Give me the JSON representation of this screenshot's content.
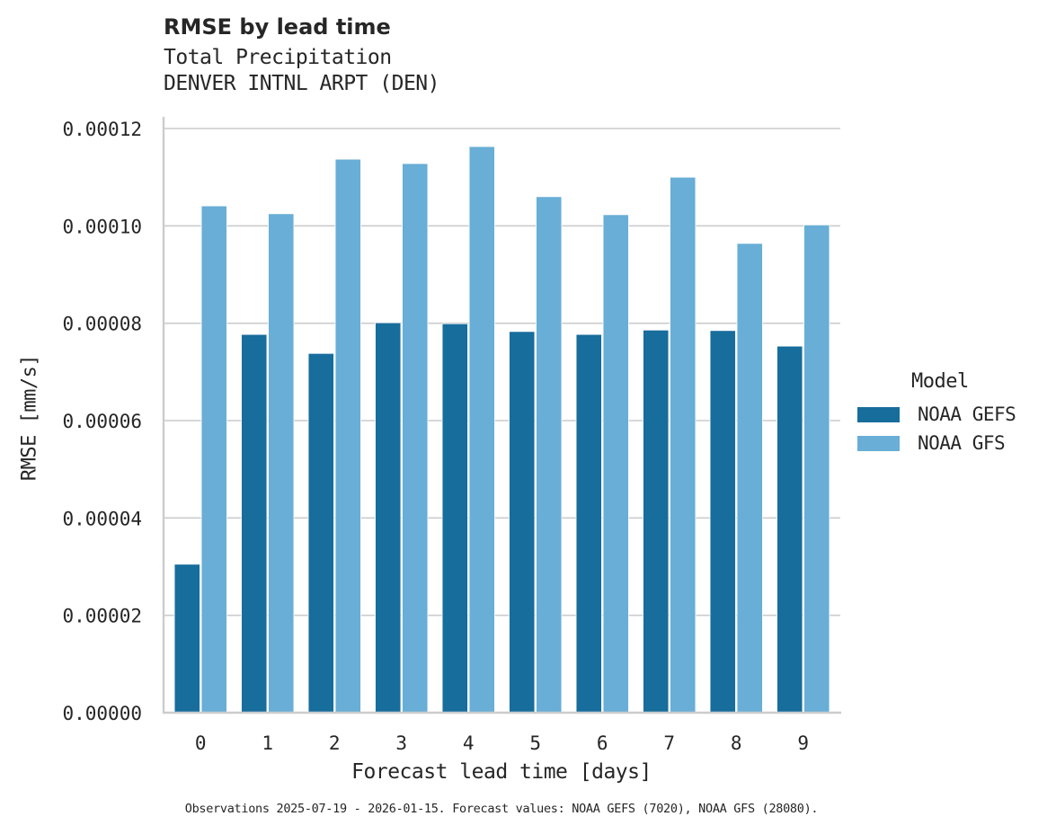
{
  "chart_data": {
    "type": "bar",
    "title": "RMSE by lead time",
    "subtitle": [
      "Total Precipitation",
      "DENVER INTNL ARPT (DEN)"
    ],
    "xlabel": "Forecast lead time [days]",
    "ylabel": "RMSE [mm/s]",
    "categories": [
      "0",
      "1",
      "2",
      "3",
      "4",
      "5",
      "6",
      "7",
      "8",
      "9"
    ],
    "series": [
      {
        "name": "NOAA GEFS",
        "color": "#176d9c",
        "values": [
          3.05e-05,
          7.77e-05,
          7.38e-05,
          8.01e-05,
          7.99e-05,
          7.83e-05,
          7.77e-05,
          7.86e-05,
          7.85e-05,
          7.53e-05
        ]
      },
      {
        "name": "NOAA GFS",
        "color": "#68aed6",
        "values": [
          0.0001041,
          0.0001025,
          0.0001137,
          0.0001128,
          0.0001163,
          0.000106,
          0.0001023,
          0.00011,
          9.64e-05,
          0.0001002
        ]
      }
    ],
    "yticks": [
      "0.00000",
      "0.00002",
      "0.00004",
      "0.00006",
      "0.00008",
      "0.00010",
      "0.00012"
    ],
    "ylim": [
      0,
      0.00012
    ],
    "grid": "horizontal",
    "legend_title": "Model",
    "legend_position": "right",
    "footnote": "Observations 2025-07-19 - 2026-01-15. Forecast values: NOAA GEFS (7020), NOAA GFS (28080)."
  },
  "title": "RMSE by lead time",
  "subtitle1": "Total Precipitation",
  "subtitle2": "DENVER INTNL ARPT (DEN)",
  "ylabel": "RMSE [mm/s]",
  "xlabel": "Forecast lead time [days]",
  "legend": {
    "title": "Model",
    "items": [
      {
        "label": "NOAA GEFS",
        "color": "#176d9c"
      },
      {
        "label": "NOAA GFS",
        "color": "#68aed6"
      }
    ]
  },
  "footnote": "Observations 2025-07-19 - 2026-01-15. Forecast values: NOAA GEFS (7020), NOAA GFS (28080)."
}
